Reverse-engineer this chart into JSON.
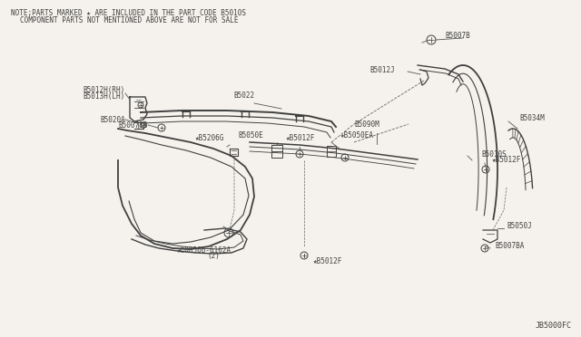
{
  "bg_color": "#f0ede8",
  "line_color": "#404040",
  "note_line1": "NOTE;PARTS MARKED ★ ARE INCLUDED IN THE PART CODE B5010S",
  "note_line2": "COMPONENT PARTS NOT MENTIONED ABOVE ARE NOT FOR SALE",
  "diagram_code": "JB5000FC"
}
